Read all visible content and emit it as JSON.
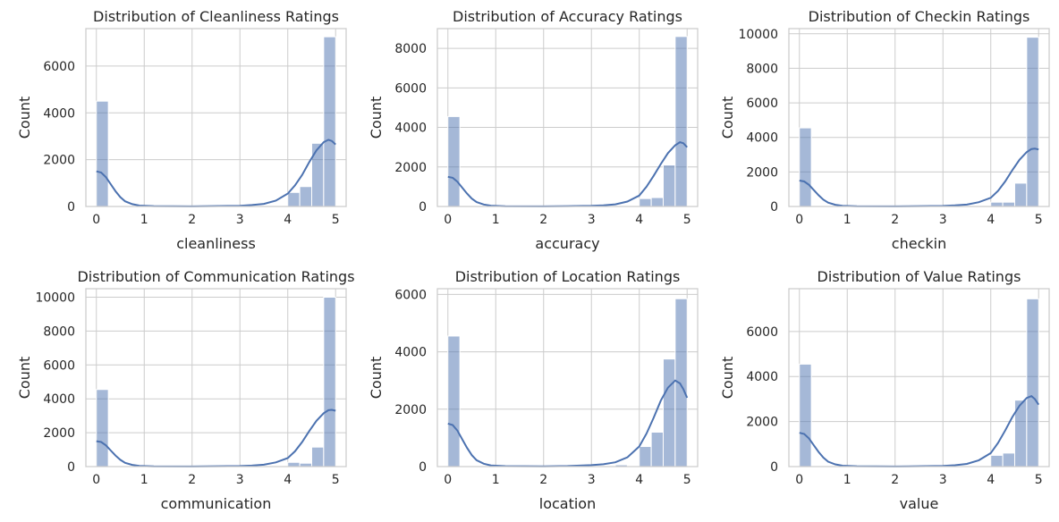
{
  "chart_data": [
    {
      "type": "bar",
      "title": "Distribution of Cleanliness Ratings",
      "xlabel": "cleanliness",
      "ylabel": "Count",
      "xlim": [
        0,
        5
      ],
      "ylim": [
        0,
        7600
      ],
      "xticks": [
        0,
        1,
        2,
        3,
        4,
        5
      ],
      "yticks": [
        0,
        2000,
        4000,
        6000
      ],
      "grid": true,
      "bin_width": 0.25,
      "bins": [
        {
          "x": 0.0,
          "count": 4500
        },
        {
          "x": 4.0,
          "count": 600
        },
        {
          "x": 4.25,
          "count": 850
        },
        {
          "x": 4.5,
          "count": 2700
        },
        {
          "x": 4.75,
          "count": 7250
        }
      ],
      "kde": [
        [
          0,
          1500
        ],
        [
          0.1,
          1450
        ],
        [
          0.2,
          1250
        ],
        [
          0.3,
          950
        ],
        [
          0.4,
          650
        ],
        [
          0.5,
          400
        ],
        [
          0.6,
          220
        ],
        [
          0.75,
          100
        ],
        [
          0.9,
          40
        ],
        [
          1.2,
          15
        ],
        [
          2,
          5
        ],
        [
          3,
          30
        ],
        [
          3.25,
          60
        ],
        [
          3.5,
          110
        ],
        [
          3.75,
          250
        ],
        [
          4,
          550
        ],
        [
          4.15,
          900
        ],
        [
          4.3,
          1350
        ],
        [
          4.45,
          1900
        ],
        [
          4.6,
          2400
        ],
        [
          4.75,
          2750
        ],
        [
          4.85,
          2850
        ],
        [
          4.92,
          2800
        ],
        [
          5,
          2650
        ]
      ]
    },
    {
      "type": "bar",
      "title": "Distribution of Accuracy Ratings",
      "xlabel": "accuracy",
      "ylabel": "Count",
      "xlim": [
        0,
        5
      ],
      "ylim": [
        0,
        9000
      ],
      "xticks": [
        0,
        1,
        2,
        3,
        4,
        5
      ],
      "yticks": [
        0,
        2000,
        4000,
        6000,
        8000
      ],
      "grid": true,
      "bin_width": 0.25,
      "bins": [
        {
          "x": 0.0,
          "count": 4550
        },
        {
          "x": 4.0,
          "count": 400
        },
        {
          "x": 4.25,
          "count": 450
        },
        {
          "x": 4.5,
          "count": 2100
        },
        {
          "x": 4.75,
          "count": 8600
        }
      ],
      "kde": [
        [
          0,
          1500
        ],
        [
          0.1,
          1450
        ],
        [
          0.2,
          1250
        ],
        [
          0.3,
          950
        ],
        [
          0.4,
          650
        ],
        [
          0.5,
          400
        ],
        [
          0.6,
          220
        ],
        [
          0.75,
          100
        ],
        [
          0.9,
          40
        ],
        [
          1.2,
          15
        ],
        [
          2,
          5
        ],
        [
          3,
          30
        ],
        [
          3.25,
          60
        ],
        [
          3.5,
          110
        ],
        [
          3.75,
          250
        ],
        [
          4,
          550
        ],
        [
          4.15,
          1000
        ],
        [
          4.3,
          1550
        ],
        [
          4.45,
          2150
        ],
        [
          4.6,
          2700
        ],
        [
          4.75,
          3100
        ],
        [
          4.85,
          3250
        ],
        [
          4.92,
          3200
        ],
        [
          5,
          3000
        ]
      ]
    },
    {
      "type": "bar",
      "title": "Distribution of Checkin Ratings",
      "xlabel": "checkin",
      "ylabel": "Count",
      "xlim": [
        0,
        5
      ],
      "ylim": [
        0,
        10300
      ],
      "xticks": [
        0,
        1,
        2,
        3,
        4,
        5
      ],
      "yticks": [
        0,
        2000,
        4000,
        6000,
        8000,
        10000
      ],
      "grid": true,
      "bin_width": 0.25,
      "bins": [
        {
          "x": 0.0,
          "count": 4550
        },
        {
          "x": 4.0,
          "count": 250
        },
        {
          "x": 4.25,
          "count": 250
        },
        {
          "x": 4.5,
          "count": 1350
        },
        {
          "x": 4.75,
          "count": 9800
        }
      ],
      "kde": [
        [
          0,
          1500
        ],
        [
          0.1,
          1450
        ],
        [
          0.2,
          1250
        ],
        [
          0.3,
          950
        ],
        [
          0.4,
          650
        ],
        [
          0.5,
          400
        ],
        [
          0.6,
          220
        ],
        [
          0.75,
          100
        ],
        [
          0.9,
          40
        ],
        [
          1.2,
          15
        ],
        [
          2,
          5
        ],
        [
          3,
          30
        ],
        [
          3.25,
          60
        ],
        [
          3.5,
          110
        ],
        [
          3.75,
          250
        ],
        [
          4,
          500
        ],
        [
          4.15,
          900
        ],
        [
          4.3,
          1450
        ],
        [
          4.45,
          2100
        ],
        [
          4.6,
          2700
        ],
        [
          4.75,
          3150
        ],
        [
          4.85,
          3330
        ],
        [
          4.92,
          3350
        ],
        [
          5,
          3300
        ]
      ]
    },
    {
      "type": "bar",
      "title": "Distribution of Communication Ratings",
      "xlabel": "communication",
      "ylabel": "Count",
      "xlim": [
        0,
        5
      ],
      "ylim": [
        0,
        10500
      ],
      "xticks": [
        0,
        1,
        2,
        3,
        4,
        5
      ],
      "yticks": [
        0,
        2000,
        4000,
        6000,
        8000,
        10000
      ],
      "grid": true,
      "bin_width": 0.25,
      "bins": [
        {
          "x": 0.0,
          "count": 4550
        },
        {
          "x": 4.0,
          "count": 250
        },
        {
          "x": 4.25,
          "count": 200
        },
        {
          "x": 4.5,
          "count": 1150
        },
        {
          "x": 4.75,
          "count": 10000
        }
      ],
      "kde": [
        [
          0,
          1500
        ],
        [
          0.1,
          1450
        ],
        [
          0.2,
          1250
        ],
        [
          0.3,
          950
        ],
        [
          0.4,
          650
        ],
        [
          0.5,
          400
        ],
        [
          0.6,
          220
        ],
        [
          0.75,
          100
        ],
        [
          0.9,
          40
        ],
        [
          1.2,
          15
        ],
        [
          2,
          5
        ],
        [
          3,
          30
        ],
        [
          3.25,
          60
        ],
        [
          3.5,
          110
        ],
        [
          3.75,
          250
        ],
        [
          4,
          500
        ],
        [
          4.15,
          900
        ],
        [
          4.3,
          1450
        ],
        [
          4.45,
          2100
        ],
        [
          4.6,
          2700
        ],
        [
          4.75,
          3150
        ],
        [
          4.85,
          3330
        ],
        [
          4.92,
          3350
        ],
        [
          5,
          3300
        ]
      ]
    },
    {
      "type": "bar",
      "title": "Distribution of Location Ratings",
      "xlabel": "location",
      "ylabel": "Count",
      "xlim": [
        0,
        5
      ],
      "ylim": [
        0,
        6200
      ],
      "xticks": [
        0,
        1,
        2,
        3,
        4,
        5
      ],
      "yticks": [
        0,
        2000,
        4000,
        6000
      ],
      "grid": true,
      "bin_width": 0.25,
      "bins": [
        {
          "x": 0.0,
          "count": 4550
        },
        {
          "x": 3.5,
          "count": 60
        },
        {
          "x": 4.0,
          "count": 700
        },
        {
          "x": 4.25,
          "count": 1200
        },
        {
          "x": 4.5,
          "count": 3750
        },
        {
          "x": 4.75,
          "count": 5850
        }
      ],
      "kde": [
        [
          0,
          1500
        ],
        [
          0.1,
          1450
        ],
        [
          0.2,
          1250
        ],
        [
          0.3,
          950
        ],
        [
          0.4,
          650
        ],
        [
          0.5,
          400
        ],
        [
          0.6,
          220
        ],
        [
          0.75,
          100
        ],
        [
          0.9,
          40
        ],
        [
          1.2,
          15
        ],
        [
          2,
          10
        ],
        [
          2.5,
          20
        ],
        [
          3,
          50
        ],
        [
          3.25,
          80
        ],
        [
          3.5,
          150
        ],
        [
          3.75,
          320
        ],
        [
          4,
          700
        ],
        [
          4.15,
          1150
        ],
        [
          4.3,
          1700
        ],
        [
          4.45,
          2300
        ],
        [
          4.6,
          2750
        ],
        [
          4.75,
          3000
        ],
        [
          4.85,
          2900
        ],
        [
          4.92,
          2700
        ],
        [
          5,
          2400
        ]
      ]
    },
    {
      "type": "bar",
      "title": "Distribution of Value Ratings",
      "xlabel": "value",
      "ylabel": "Count",
      "xlim": [
        0,
        5
      ],
      "ylim": [
        0,
        7900
      ],
      "xticks": [
        0,
        1,
        2,
        3,
        4,
        5
      ],
      "yticks": [
        0,
        2000,
        4000,
        6000
      ],
      "grid": true,
      "bin_width": 0.25,
      "bins": [
        {
          "x": 0.0,
          "count": 4550
        },
        {
          "x": 4.0,
          "count": 500
        },
        {
          "x": 4.25,
          "count": 600
        },
        {
          "x": 4.5,
          "count": 2950
        },
        {
          "x": 4.75,
          "count": 7450
        }
      ],
      "kde": [
        [
          0,
          1500
        ],
        [
          0.1,
          1450
        ],
        [
          0.2,
          1250
        ],
        [
          0.3,
          950
        ],
        [
          0.4,
          650
        ],
        [
          0.5,
          400
        ],
        [
          0.6,
          220
        ],
        [
          0.75,
          100
        ],
        [
          0.9,
          40
        ],
        [
          1.2,
          15
        ],
        [
          2,
          5
        ],
        [
          3,
          30
        ],
        [
          3.25,
          60
        ],
        [
          3.5,
          120
        ],
        [
          3.75,
          280
        ],
        [
          4,
          600
        ],
        [
          4.15,
          1050
        ],
        [
          4.3,
          1600
        ],
        [
          4.45,
          2200
        ],
        [
          4.6,
          2700
        ],
        [
          4.75,
          3050
        ],
        [
          4.85,
          3130
        ],
        [
          4.92,
          3000
        ],
        [
          5,
          2750
        ]
      ]
    }
  ]
}
